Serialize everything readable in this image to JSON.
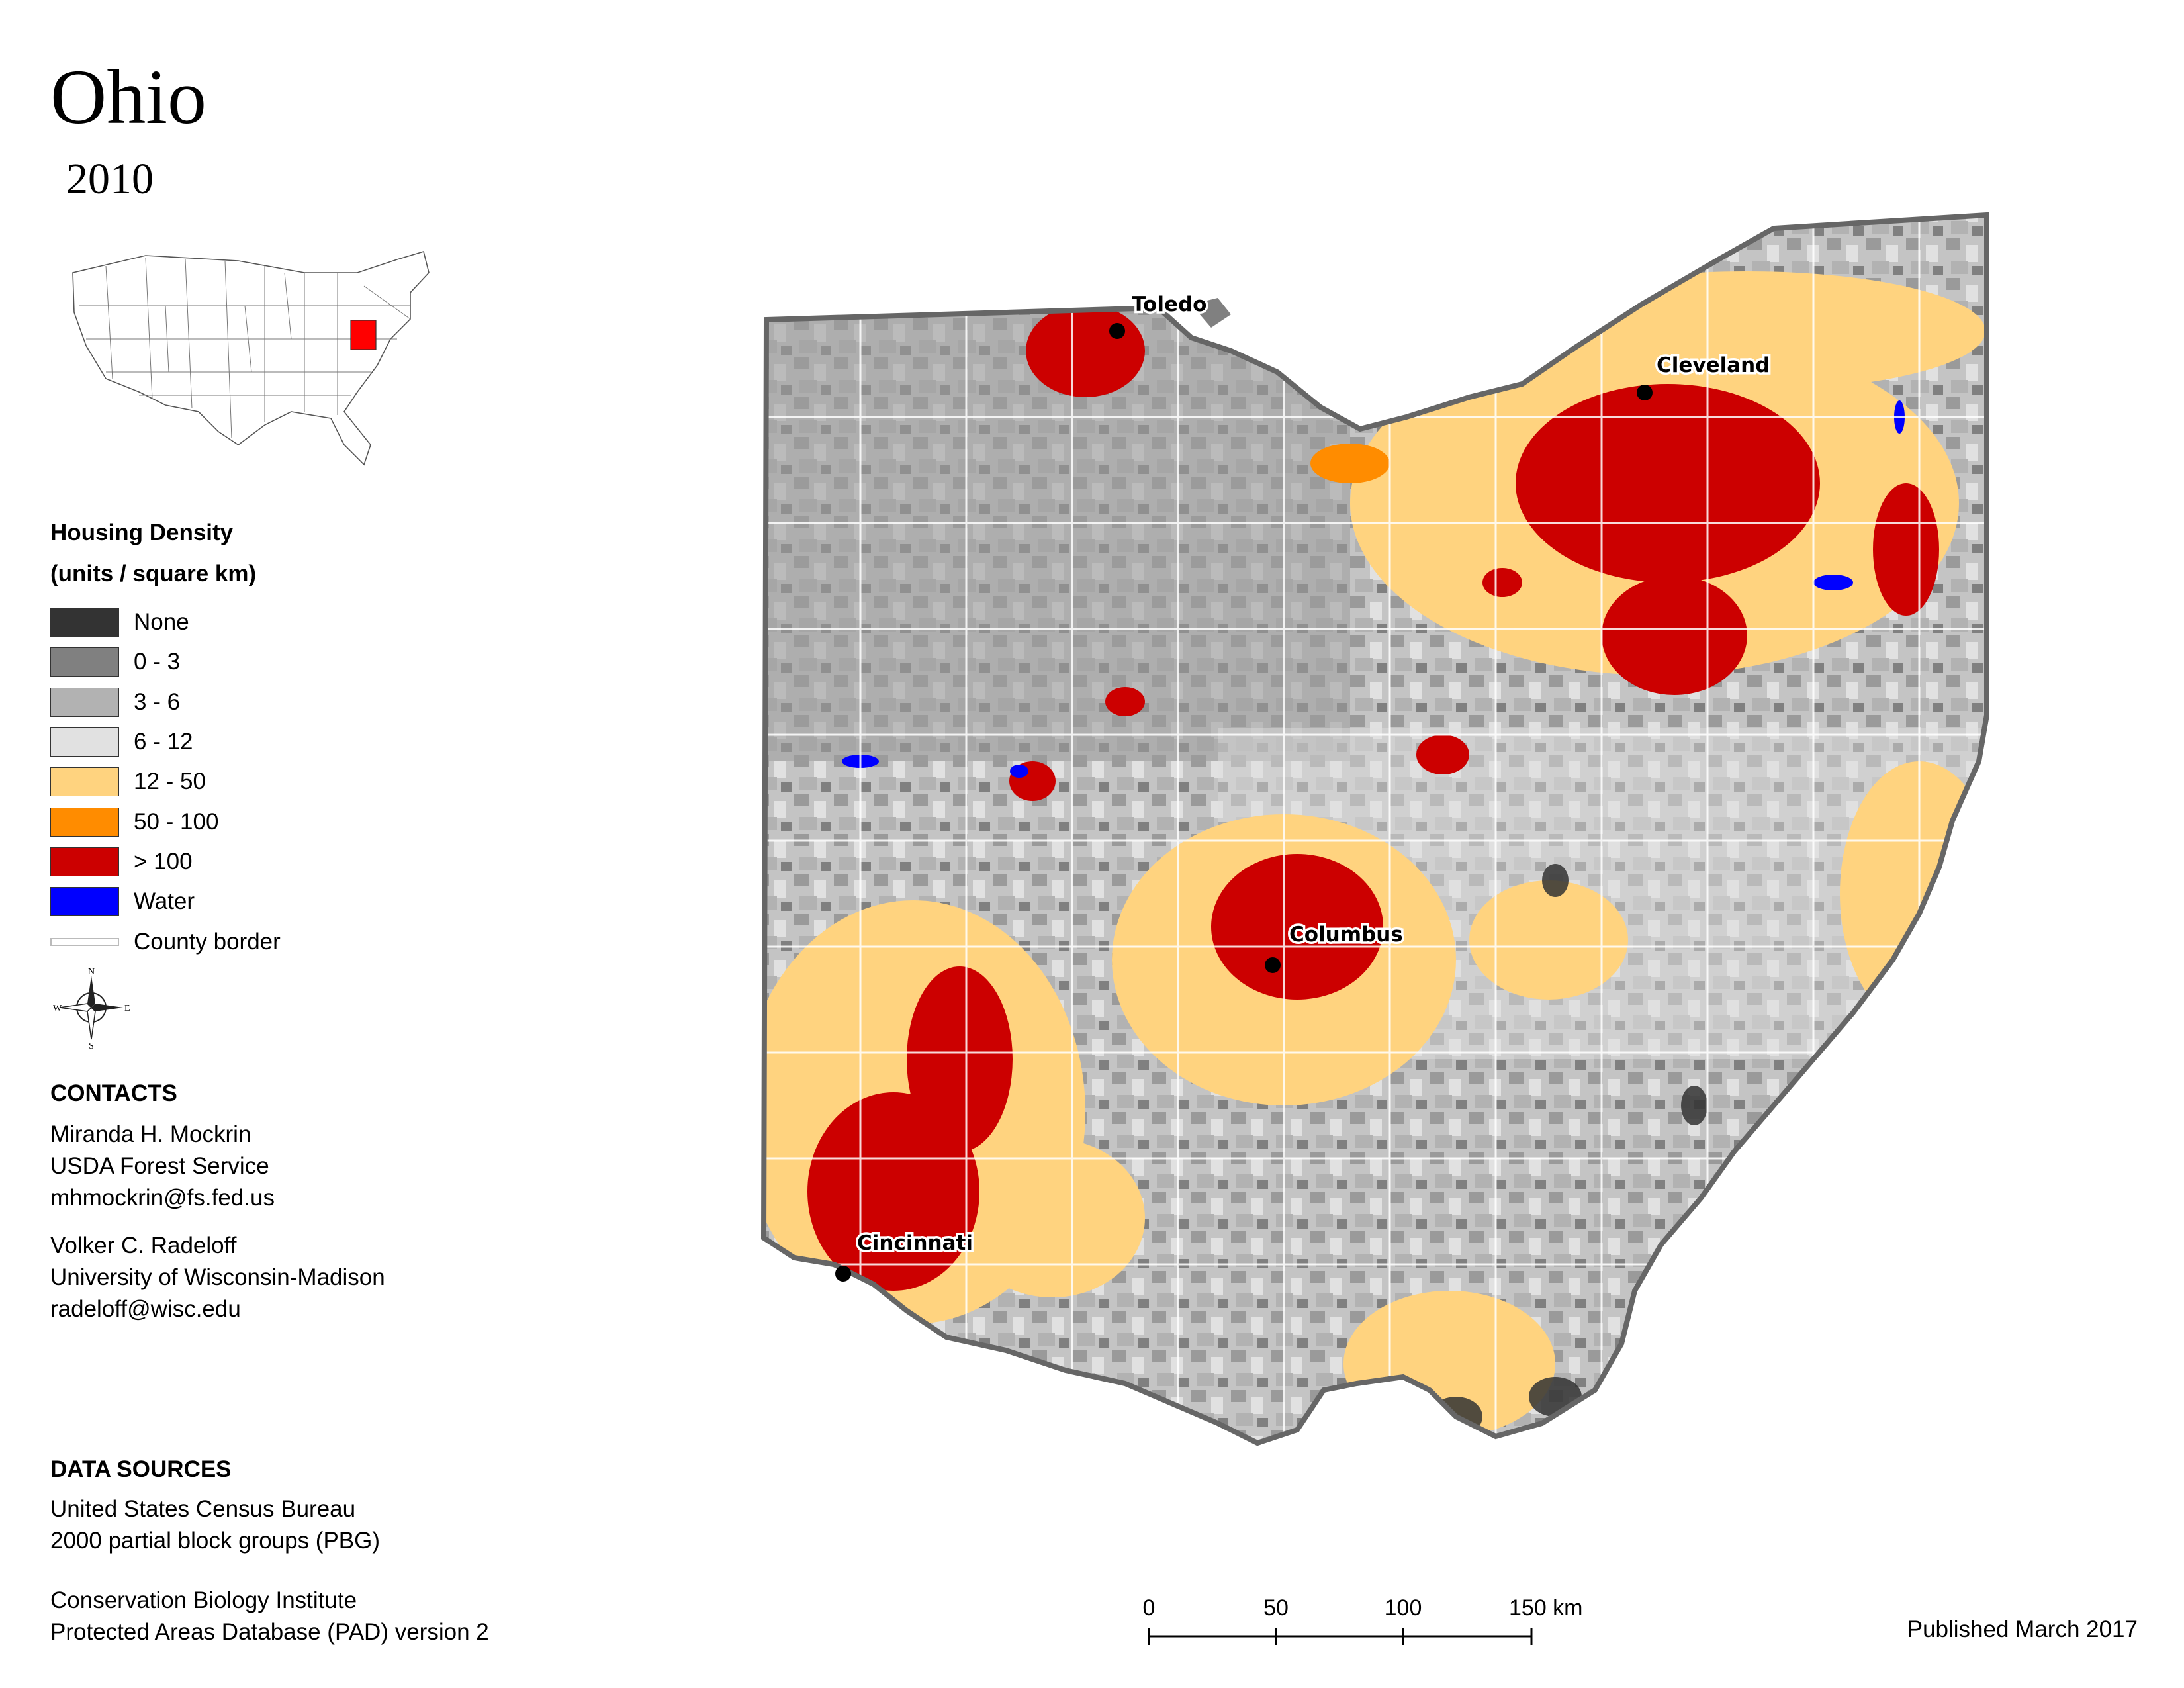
{
  "title": "Ohio",
  "year": "2010",
  "inset_map": {
    "highlight_state": "Ohio",
    "highlight_color": "#ff0000"
  },
  "legend": {
    "title_line1": "Housing Density",
    "title_line2": "(units / square km)",
    "items": [
      {
        "label": "None",
        "color": "#333333"
      },
      {
        "label": "0 - 3",
        "color": "#808080"
      },
      {
        "label": "3 - 6",
        "color": "#b2b2b2"
      },
      {
        "label": "6 - 12",
        "color": "#e1e1e1"
      },
      {
        "label": "12 - 50",
        "color": "#ffd37f"
      },
      {
        "label": "50 - 100",
        "color": "#ff8c00"
      },
      {
        "label": "> 100",
        "color": "#cc0000"
      },
      {
        "label": "Water",
        "color": "#0000ff"
      },
      {
        "label": "County border",
        "color": "#cccccc"
      }
    ]
  },
  "compass": {
    "n": "N",
    "s": "S",
    "e": "E",
    "w": "W",
    "icon": "compass-rose-icon"
  },
  "contacts": {
    "heading": "CONTACTS",
    "person1": [
      "Miranda H. Mockrin",
      "USDA Forest Service",
      "mhmockrin@fs.fed.us"
    ],
    "person2": [
      "Volker C. Radeloff",
      "University of Wisconsin-Madison",
      "radeloff@wisc.edu"
    ]
  },
  "data_sources": {
    "heading": "DATA SOURCES",
    "source1": [
      "United States Census Bureau",
      "2000 partial block groups (PBG)"
    ],
    "source2": [
      "Conservation Biology Institute",
      "Protected Areas Database (PAD) version 2"
    ]
  },
  "cities": {
    "toledo": "Toledo",
    "cleveland": "Cleveland",
    "columbus": "Columbus",
    "cincinnati": "Cincinnati"
  },
  "scale_bar": {
    "ticks": [
      "0",
      "50",
      "100",
      "150 km"
    ]
  },
  "published": "Published March 2017"
}
